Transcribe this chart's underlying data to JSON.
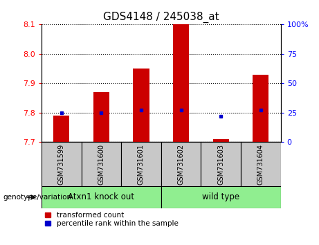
{
  "title": "GDS4148 / 245038_at",
  "samples": [
    "GSM731599",
    "GSM731600",
    "GSM731601",
    "GSM731602",
    "GSM731603",
    "GSM731604"
  ],
  "groups": [
    "Atxn1 knock out",
    "Atxn1 knock out",
    "Atxn1 knock out",
    "wild type",
    "wild type",
    "wild type"
  ],
  "red_values": [
    7.79,
    7.87,
    7.95,
    8.1,
    7.71,
    7.93
  ],
  "blue_values": [
    25,
    25,
    27,
    27,
    22,
    27
  ],
  "ylim_left": [
    7.7,
    8.1
  ],
  "ylim_right": [
    0,
    100
  ],
  "yticks_left": [
    7.7,
    7.8,
    7.9,
    8.0,
    8.1
  ],
  "yticks_right": [
    0,
    25,
    50,
    75,
    100
  ],
  "ytick_labels_right": [
    "0",
    "25",
    "50",
    "75",
    "100%"
  ],
  "bar_color": "#cc0000",
  "dot_color": "#0000cc",
  "bar_width": 0.4,
  "sample_bg_color": "#c8c8c8",
  "group1_label": "Atxn1 knock out",
  "group2_label": "wild type",
  "group_color": "#90EE90",
  "legend_red": "transformed count",
  "legend_blue": "percentile rank within the sample",
  "genotype_label": "genotype/variation"
}
